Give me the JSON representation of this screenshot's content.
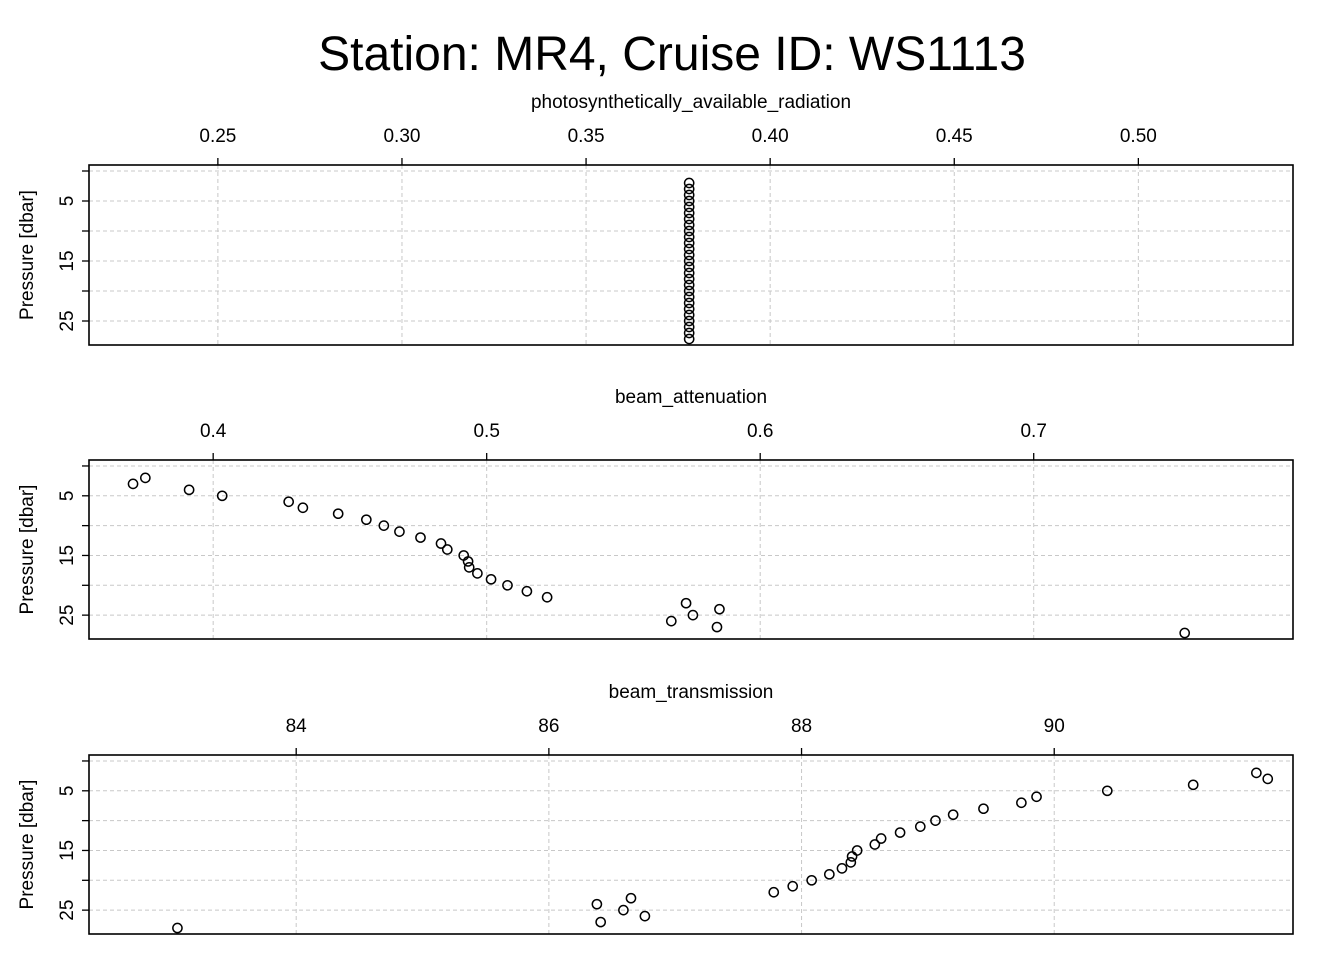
{
  "title": "Station: MR4, Cruise ID: WS1113",
  "chart_data": [
    {
      "type": "scatter",
      "xlabel": "photosynthetically_available_radiation",
      "ylabel": "Pressure [dbar]",
      "xticks": [
        "0.25",
        "0.30",
        "0.35",
        "0.40",
        "0.45",
        "0.50"
      ],
      "yticks": [
        "5",
        "15",
        "25"
      ],
      "xlim": [
        0.215,
        0.542
      ],
      "ylim": [
        29.0,
        -1.0
      ],
      "grid": true,
      "x": [
        0.378,
        0.378,
        0.378,
        0.378,
        0.378,
        0.378,
        0.378,
        0.378,
        0.378,
        0.378,
        0.378,
        0.378,
        0.378,
        0.378,
        0.378,
        0.378,
        0.378,
        0.378,
        0.378,
        0.378,
        0.378,
        0.378,
        0.378,
        0.378,
        0.378,
        0.378,
        0.378
      ],
      "y": [
        2,
        3,
        4,
        5,
        6,
        7,
        8,
        9,
        10,
        11,
        12,
        13,
        14,
        15,
        16,
        17,
        18,
        19,
        20,
        21,
        22,
        23,
        24,
        25,
        26,
        27,
        28
      ]
    },
    {
      "type": "scatter",
      "xlabel": "beam_attenuation",
      "ylabel": "Pressure [dbar]",
      "xticks": [
        "0.4",
        "0.5",
        "0.6",
        "0.7"
      ],
      "yticks": [
        "5",
        "15",
        "25"
      ],
      "xlim": [
        0.3546,
        0.7948
      ],
      "ylim": [
        29.0,
        -1.0
      ],
      "grid": true,
      "x": [
        0.3707,
        0.3752,
        0.3912,
        0.4033,
        0.4276,
        0.4328,
        0.4457,
        0.456,
        0.4624,
        0.4681,
        0.4758,
        0.4833,
        0.4856,
        0.4916,
        0.4932,
        0.4936,
        0.4966,
        0.5016,
        0.5076,
        0.5147,
        0.5221,
        0.5729,
        0.5754,
        0.5851,
        0.5675,
        0.5842,
        0.7552
      ],
      "y": [
        3,
        2,
        4,
        5,
        6,
        7,
        8,
        9,
        10,
        11,
        12,
        13,
        14,
        15,
        16,
        17,
        18,
        19,
        20,
        21,
        22,
        23,
        25,
        24,
        26,
        27,
        28
      ]
    },
    {
      "type": "scatter",
      "xlabel": "beam_transmission",
      "ylabel": "Pressure [dbar]",
      "xticks": [
        "84",
        "86",
        "88",
        "90"
      ],
      "yticks": [
        "5",
        "15",
        "25"
      ],
      "xlim": [
        82.36,
        91.89
      ],
      "ylim": [
        29.0,
        -1.0
      ],
      "grid": true,
      "x": [
        91.69,
        91.6,
        91.1,
        90.42,
        89.86,
        89.74,
        89.44,
        89.2,
        89.06,
        88.94,
        88.78,
        88.63,
        88.58,
        88.44,
        88.4,
        88.39,
        88.32,
        88.22,
        88.08,
        87.93,
        87.78,
        86.65,
        86.59,
        86.38,
        86.76,
        86.41,
        83.06
      ],
      "y": [
        3,
        2,
        4,
        5,
        6,
        7,
        8,
        9,
        10,
        11,
        12,
        13,
        14,
        15,
        16,
        17,
        18,
        19,
        20,
        21,
        22,
        23,
        25,
        24,
        26,
        27,
        28
      ]
    }
  ]
}
